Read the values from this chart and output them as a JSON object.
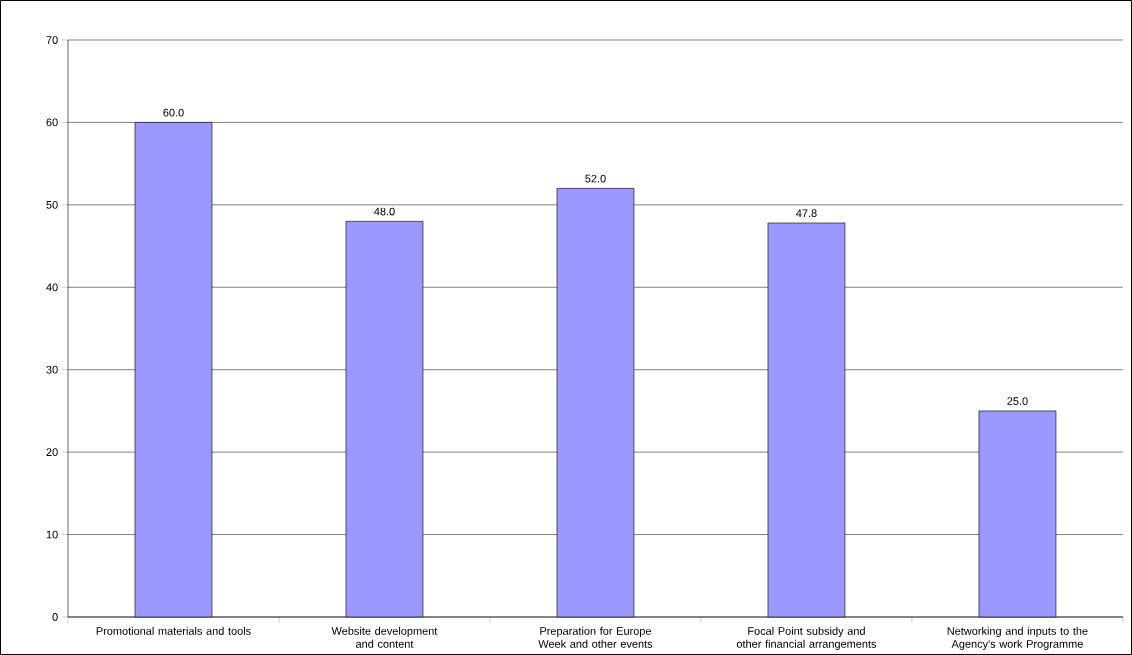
{
  "chart_data": {
    "type": "bar",
    "categories": [
      "Promotional materials and tools",
      "Website development and content",
      "Preparation for Europe Week and other events",
      "Focal Point subsidy and other financial arrangements",
      "Networking and inputs to the Agency's work Programme"
    ],
    "values": [
      60.0,
      48.0,
      52.0,
      47.8,
      25.0
    ],
    "value_labels": [
      "60.0",
      "48.0",
      "52.0",
      "47.8",
      "25.0"
    ],
    "color": "#9999ff",
    "ylim": [
      0,
      70
    ],
    "yticks": [
      0,
      10,
      20,
      30,
      40,
      50,
      60,
      70
    ],
    "grid": "y"
  }
}
